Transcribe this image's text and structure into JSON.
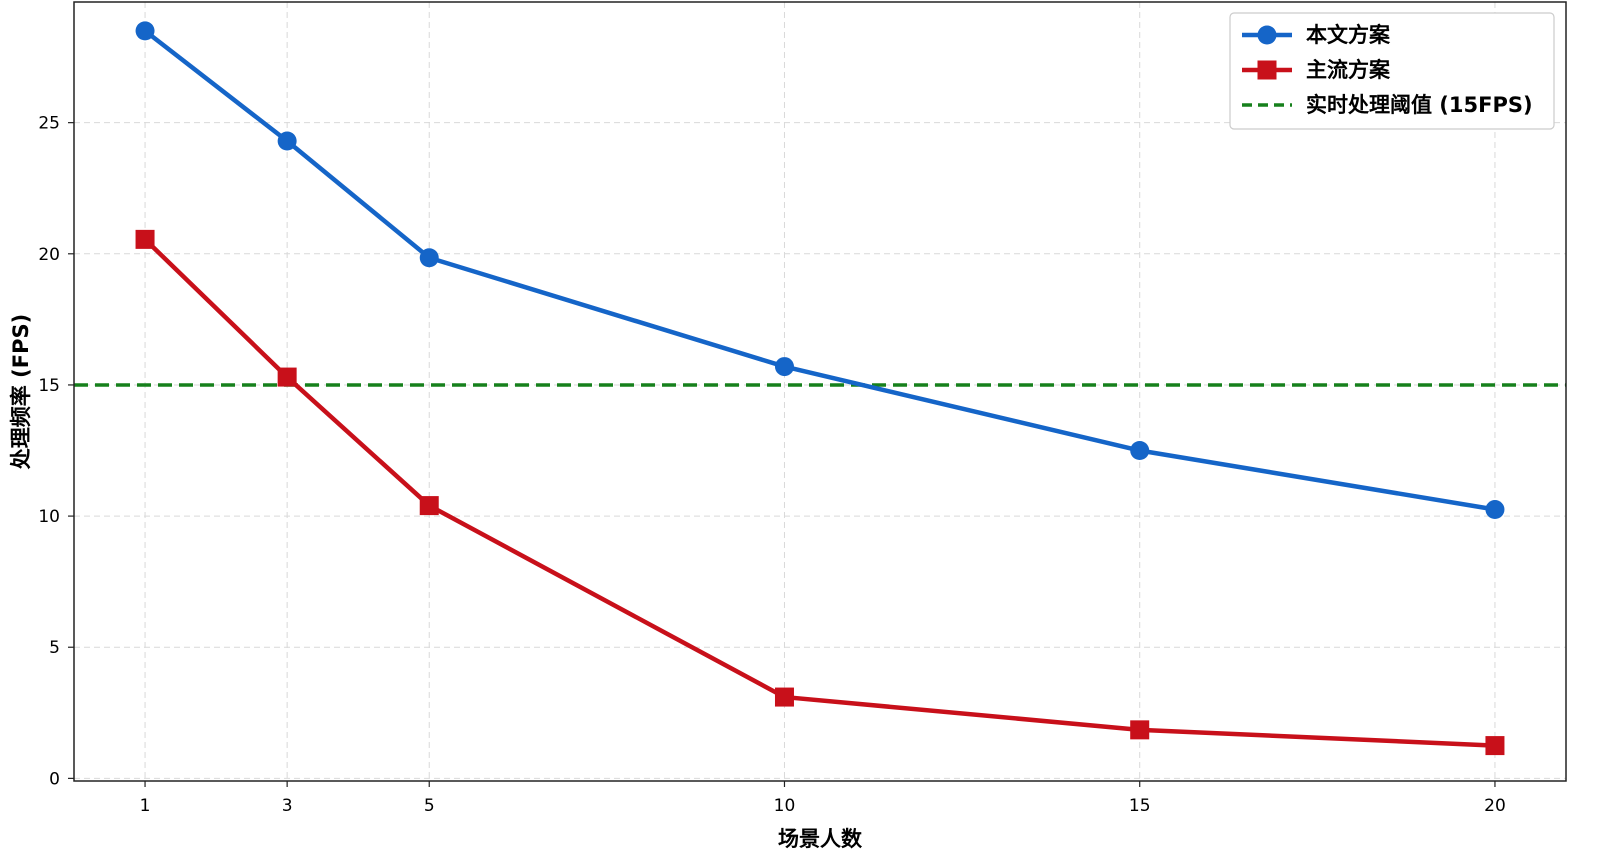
{
  "chart_data": {
    "type": "line",
    "title": "",
    "xlabel": "场景人数",
    "ylabel": "处理频率 (FPS)",
    "x": [
      1,
      3,
      5,
      10,
      15,
      20
    ],
    "x_ticks": [
      "1",
      "3",
      "5",
      "10",
      "15",
      "20"
    ],
    "y_ticks": [
      "0",
      "5",
      "10",
      "15",
      "20",
      "25"
    ],
    "xlim": [
      0.0,
      21.0
    ],
    "ylim": [
      -0.1,
      29.6
    ],
    "grid": true,
    "legend_position": "top-right",
    "series": [
      {
        "name": "本文方案",
        "values": [
          28.5,
          24.3,
          19.85,
          15.7,
          12.5,
          10.25
        ],
        "color": "#1565c8",
        "marker": "circle",
        "style": "solid"
      },
      {
        "name": "主流方案",
        "values": [
          20.55,
          15.3,
          10.4,
          3.1,
          1.85,
          1.25
        ],
        "color": "#c8101a",
        "marker": "square",
        "style": "solid"
      }
    ],
    "reference_lines": [
      {
        "name": "实时处理阈值 (15FPS)",
        "y": 15,
        "color": "#16801c",
        "style": "dashed"
      }
    ]
  }
}
